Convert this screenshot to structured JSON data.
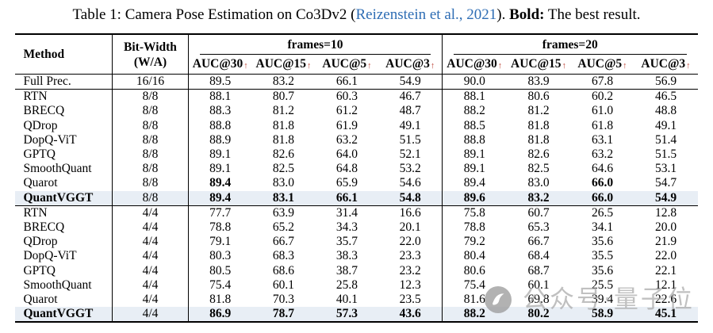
{
  "caption": {
    "prefix": "Table 1: Camera Pose Estimation on Co3Dv2 (",
    "link": "Reizenstein et al., 2021",
    "suffix": "). ",
    "bold_label": "Bold:",
    "tail": " The best result."
  },
  "table": {
    "header": {
      "method": "Method",
      "bitwidth_line1": "Bit-Width",
      "bitwidth_line2": "(W/A)",
      "group1": "frames=10",
      "group2": "frames=20",
      "metric_labels": [
        "AUC@30",
        "AUC@15",
        "AUC@5",
        "AUC@3"
      ],
      "arrow": "↑"
    },
    "sections": [
      {
        "name": "full-precision",
        "rows": [
          {
            "method": "Full Prec.",
            "bits": "16/16",
            "values": [
              "89.5",
              "83.2",
              "66.1",
              "54.9",
              "90.0",
              "83.9",
              "67.8",
              "56.9"
            ]
          }
        ]
      },
      {
        "name": "w8a8",
        "rows": [
          {
            "method": "RTN",
            "bits": "8/8",
            "values": [
              "88.1",
              "80.7",
              "60.3",
              "46.7",
              "88.1",
              "80.6",
              "60.2",
              "46.5"
            ]
          },
          {
            "method": "BRECQ",
            "bits": "8/8",
            "values": [
              "88.3",
              "81.2",
              "61.2",
              "48.7",
              "88.2",
              "81.2",
              "61.0",
              "48.8"
            ]
          },
          {
            "method": "QDrop",
            "bits": "8/8",
            "values": [
              "88.8",
              "81.8",
              "61.9",
              "49.1",
              "88.5",
              "81.8",
              "61.8",
              "49.1"
            ]
          },
          {
            "method": "DopQ-ViT",
            "bits": "8/8",
            "values": [
              "88.9",
              "81.8",
              "63.2",
              "51.5",
              "88.8",
              "81.8",
              "63.1",
              "51.4"
            ]
          },
          {
            "method": "GPTQ",
            "bits": "8/8",
            "values": [
              "89.1",
              "82.6",
              "64.0",
              "52.1",
              "89.1",
              "82.6",
              "63.2",
              "51.5"
            ]
          },
          {
            "method": "SmoothQuant",
            "bits": "8/8",
            "values": [
              "89.1",
              "82.5",
              "64.8",
              "53.2",
              "89.1",
              "82.5",
              "64.6",
              "53.1"
            ]
          },
          {
            "method": "Quarot",
            "bits": "8/8",
            "values": [
              "89.4",
              "83.0",
              "65.9",
              "54.6",
              "89.4",
              "83.0",
              "66.0",
              "54.7"
            ],
            "bold": [
              1,
              0,
              0,
              0,
              0,
              0,
              1,
              0
            ]
          },
          {
            "method": "QuantVGGT",
            "bits": "8/8",
            "values": [
              "89.4",
              "83.1",
              "66.1",
              "54.8",
              "89.6",
              "83.2",
              "66.0",
              "54.9"
            ],
            "bold": [
              1,
              1,
              1,
              1,
              1,
              1,
              1,
              1
            ],
            "method_bold": true,
            "highlight": true
          }
        ]
      },
      {
        "name": "w4a4",
        "rows": [
          {
            "method": "RTN",
            "bits": "4/4",
            "values": [
              "77.7",
              "63.9",
              "31.4",
              "16.6",
              "75.8",
              "60.7",
              "26.5",
              "12.8"
            ]
          },
          {
            "method": "BRECQ",
            "bits": "4/4",
            "values": [
              "78.8",
              "65.2",
              "34.3",
              "20.1",
              "78.8",
              "65.3",
              "34.1",
              "20.0"
            ]
          },
          {
            "method": "QDrop",
            "bits": "4/4",
            "values": [
              "79.1",
              "66.7",
              "35.7",
              "22.0",
              "79.2",
              "66.7",
              "35.6",
              "21.9"
            ]
          },
          {
            "method": "DopQ-ViT",
            "bits": "4/4",
            "values": [
              "80.3",
              "68.3",
              "38.3",
              "23.3",
              "80.4",
              "68.4",
              "35.5",
              "22.0"
            ]
          },
          {
            "method": "GPTQ",
            "bits": "4/4",
            "values": [
              "80.5",
              "68.6",
              "38.7",
              "23.2",
              "80.6",
              "68.7",
              "35.6",
              "22.1"
            ]
          },
          {
            "method": "SmoothQuant",
            "bits": "4/4",
            "values": [
              "75.4",
              "60.1",
              "25.8",
              "12.3",
              "75.4",
              "60.1",
              "25.5",
              "12.1"
            ]
          },
          {
            "method": "Quarot",
            "bits": "4/4",
            "values": [
              "81.8",
              "70.3",
              "40.1",
              "23.5",
              "81.6",
              "69.8",
              "39.4",
              "22.6"
            ]
          },
          {
            "method": "QuantVGGT",
            "bits": "4/4",
            "values": [
              "86.9",
              "78.7",
              "57.3",
              "43.6",
              "88.2",
              "80.2",
              "58.9",
              "45.1"
            ],
            "bold": [
              1,
              1,
              1,
              1,
              1,
              1,
              1,
              1
            ],
            "method_bold": true,
            "highlight": true
          }
        ]
      }
    ]
  },
  "watermark": {
    "text": "公众号·量子位"
  },
  "colors": {
    "link_blue": "#2e6db4",
    "arrow_red": "#b9392a",
    "row_highlight": "#e8eef5",
    "rule_black": "#000000",
    "watermark_gray": "#a9a9a9"
  }
}
